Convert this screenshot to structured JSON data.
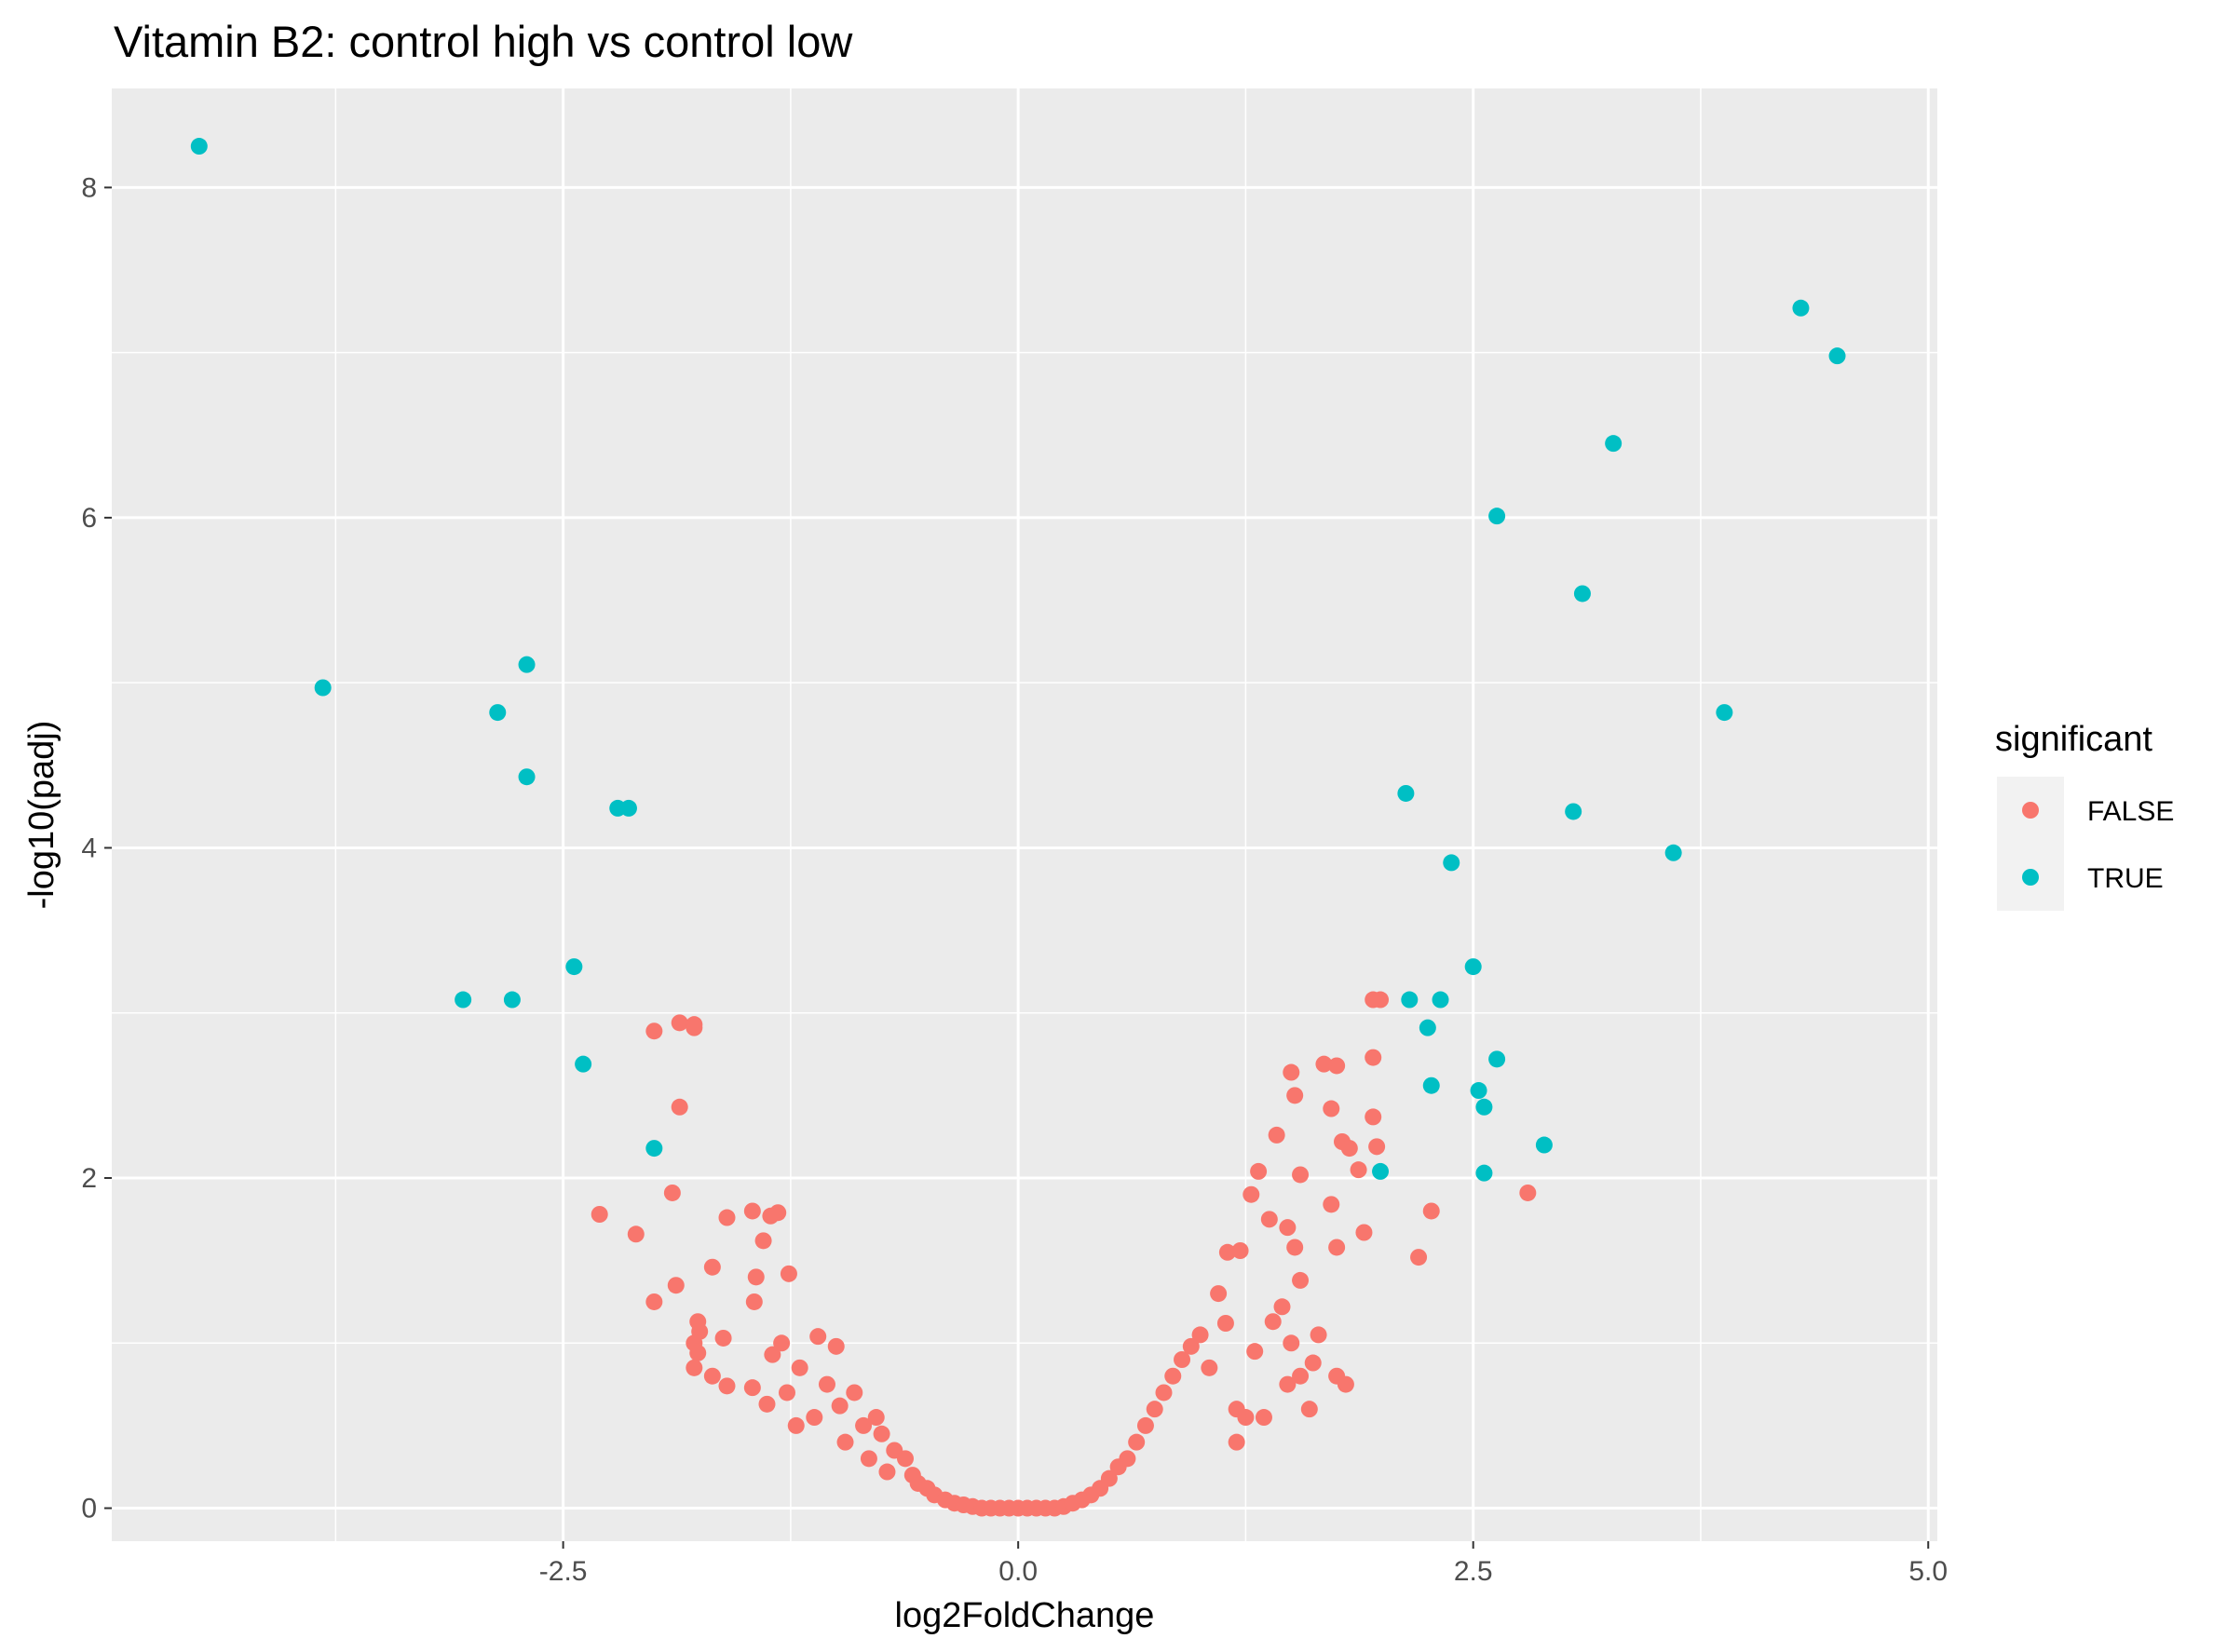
{
  "chart_data": {
    "type": "scatter",
    "title": "Vitamin B2: control high vs control low",
    "xlabel": "log2FoldChange",
    "ylabel": "-log10(padj)",
    "xlim": [
      -4.98,
      5.05
    ],
    "ylim": [
      -0.2,
      8.6
    ],
    "x_ticks": [
      -2.5,
      0,
      2.5,
      5
    ],
    "x_tick_labels": [
      "-2.5",
      "0.0",
      "2.5",
      "5.0"
    ],
    "y_ticks": [
      0,
      2,
      4,
      6,
      8
    ],
    "y_tick_labels": [
      "0",
      "2",
      "4",
      "6",
      "8"
    ],
    "grid": true,
    "legend": {
      "title": "significant",
      "position": "right",
      "entries": [
        {
          "label": "FALSE",
          "color": "#F8766D"
        },
        {
          "label": "TRUE",
          "color": "#00BFC4"
        }
      ]
    },
    "colors": {
      "panel": "#EBEBEB",
      "grid": "#FFFFFF",
      "false": "#F8766D",
      "true": "#00BFC4"
    },
    "series": [
      {
        "name": "TRUE",
        "color": "#00BFC4",
        "points": [
          [
            -4.5,
            8.25
          ],
          [
            -3.82,
            4.97
          ],
          [
            -2.7,
            5.11
          ],
          [
            -2.86,
            4.82
          ],
          [
            -2.7,
            4.43
          ],
          [
            -2.2,
            4.24
          ],
          [
            -2.14,
            4.24
          ],
          [
            -2.44,
            3.28
          ],
          [
            -3.05,
            3.08
          ],
          [
            -2.78,
            3.08
          ],
          [
            -2.39,
            2.69
          ],
          [
            -2.0,
            2.18
          ],
          [
            4.3,
            7.27
          ],
          [
            4.5,
            6.98
          ],
          [
            3.27,
            6.45
          ],
          [
            2.63,
            6.01
          ],
          [
            3.1,
            5.54
          ],
          [
            3.88,
            4.82
          ],
          [
            2.13,
            4.33
          ],
          [
            3.05,
            4.22
          ],
          [
            3.6,
            3.97
          ],
          [
            2.38,
            3.91
          ],
          [
            2.5,
            3.28
          ],
          [
            2.15,
            3.08
          ],
          [
            2.32,
            3.08
          ],
          [
            2.25,
            2.91
          ],
          [
            2.63,
            2.72
          ],
          [
            2.27,
            2.56
          ],
          [
            2.53,
            2.53
          ],
          [
            2.56,
            2.43
          ],
          [
            2.89,
            2.2
          ],
          [
            1.99,
            2.04
          ],
          [
            2.56,
            2.03
          ]
        ]
      },
      {
        "name": "FALSE",
        "color": "#F8766D",
        "points": [
          [
            -2.0,
            2.89
          ],
          [
            -1.86,
            2.94
          ],
          [
            -1.78,
            2.93
          ],
          [
            -1.78,
            2.91
          ],
          [
            -1.86,
            2.43
          ],
          [
            -1.9,
            1.91
          ],
          [
            -2.3,
            1.78
          ],
          [
            -2.1,
            1.66
          ],
          [
            -1.6,
            1.76
          ],
          [
            -1.46,
            1.8
          ],
          [
            -1.32,
            1.79
          ],
          [
            -1.36,
            1.77
          ],
          [
            -1.4,
            1.62
          ],
          [
            -1.68,
            1.46
          ],
          [
            -1.26,
            1.42
          ],
          [
            -1.44,
            1.4
          ],
          [
            -1.88,
            1.35
          ],
          [
            -2.0,
            1.25
          ],
          [
            -1.45,
            1.25
          ],
          [
            -1.76,
            1.13
          ],
          [
            -1.75,
            1.07
          ],
          [
            -1.78,
            1.0
          ],
          [
            -1.76,
            0.94
          ],
          [
            -1.62,
            1.03
          ],
          [
            -1.78,
            0.85
          ],
          [
            -1.68,
            0.8
          ],
          [
            -1.6,
            0.74
          ],
          [
            -1.46,
            0.73
          ],
          [
            -1.38,
            0.63
          ],
          [
            -1.35,
            0.93
          ],
          [
            -1.3,
            1.0
          ],
          [
            -1.2,
            0.85
          ],
          [
            -1.1,
            1.04
          ],
          [
            -1.0,
            0.98
          ],
          [
            -1.27,
            0.7
          ],
          [
            -1.22,
            0.5
          ],
          [
            -1.12,
            0.55
          ],
          [
            -1.05,
            0.75
          ],
          [
            -0.98,
            0.62
          ],
          [
            -0.95,
            0.4
          ],
          [
            -0.9,
            0.7
          ],
          [
            -0.85,
            0.5
          ],
          [
            -0.82,
            0.3
          ],
          [
            -0.78,
            0.55
          ],
          [
            -0.75,
            0.45
          ],
          [
            -0.72,
            0.22
          ],
          [
            -0.68,
            0.35
          ],
          [
            -0.62,
            0.3
          ],
          [
            -0.58,
            0.2
          ],
          [
            -0.55,
            0.15
          ],
          [
            -0.5,
            0.12
          ],
          [
            -0.46,
            0.08
          ],
          [
            -0.4,
            0.05
          ],
          [
            -0.35,
            0.03
          ],
          [
            -0.3,
            0.02
          ],
          [
            -0.25,
            0.01
          ],
          [
            -0.2,
            0.0
          ],
          [
            -0.15,
            0.0
          ],
          [
            -0.1,
            0.0
          ],
          [
            -0.05,
            0.0
          ],
          [
            0.0,
            0.0
          ],
          [
            0.05,
            0.0
          ],
          [
            0.1,
            0.0
          ],
          [
            0.15,
            0.0
          ],
          [
            0.2,
            0.0
          ],
          [
            0.25,
            0.01
          ],
          [
            0.3,
            0.03
          ],
          [
            0.35,
            0.05
          ],
          [
            0.4,
            0.08
          ],
          [
            0.45,
            0.12
          ],
          [
            0.5,
            0.18
          ],
          [
            0.55,
            0.25
          ],
          [
            0.6,
            0.3
          ],
          [
            0.65,
            0.4
          ],
          [
            0.7,
            0.5
          ],
          [
            0.75,
            0.6
          ],
          [
            0.8,
            0.7
          ],
          [
            0.85,
            0.8
          ],
          [
            0.9,
            0.9
          ],
          [
            0.95,
            0.98
          ],
          [
            1.0,
            1.05
          ],
          [
            1.05,
            0.85
          ],
          [
            1.1,
            1.3
          ],
          [
            1.14,
            1.12
          ],
          [
            1.2,
            0.6
          ],
          [
            1.2,
            0.4
          ],
          [
            1.25,
            0.55
          ],
          [
            1.3,
            0.95
          ],
          [
            1.35,
            0.55
          ],
          [
            1.15,
            1.55
          ],
          [
            1.22,
            1.56
          ],
          [
            1.28,
            1.9
          ],
          [
            1.32,
            2.04
          ],
          [
            1.38,
            1.75
          ],
          [
            1.42,
            2.26
          ],
          [
            1.48,
            1.7
          ],
          [
            1.5,
            2.64
          ],
          [
            1.52,
            2.5
          ],
          [
            1.55,
            2.02
          ],
          [
            1.52,
            1.58
          ],
          [
            1.4,
            1.13
          ],
          [
            1.45,
            1.22
          ],
          [
            1.5,
            1.0
          ],
          [
            1.55,
            0.8
          ],
          [
            1.6,
            0.6
          ],
          [
            1.65,
            1.05
          ],
          [
            1.68,
            2.69
          ],
          [
            1.72,
            2.42
          ],
          [
            1.75,
            2.68
          ],
          [
            1.72,
            1.84
          ],
          [
            1.75,
            1.58
          ],
          [
            1.78,
            2.22
          ],
          [
            1.82,
            2.18
          ],
          [
            1.87,
            2.05
          ],
          [
            1.9,
            1.67
          ],
          [
            1.95,
            2.37
          ],
          [
            1.97,
            2.19
          ],
          [
            1.95,
            2.73
          ],
          [
            1.95,
            3.08
          ],
          [
            1.99,
            3.08
          ],
          [
            2.2,
            1.52
          ],
          [
            2.27,
            1.8
          ],
          [
            2.8,
            1.91
          ],
          [
            1.75,
            0.8
          ],
          [
            1.8,
            0.75
          ],
          [
            1.55,
            1.38
          ],
          [
            1.62,
            0.88
          ],
          [
            1.48,
            0.75
          ]
        ]
      }
    ]
  }
}
